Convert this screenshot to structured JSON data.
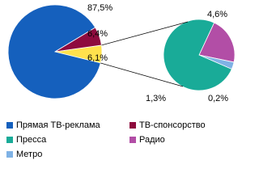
{
  "chart_data": {
    "type": "pie-of-pie",
    "main": {
      "categories": [
        "Прямая ТВ-реклама",
        "ТВ-спонсорство",
        null
      ],
      "values": [
        87.5,
        6.4,
        6.1
      ],
      "value_labels": [
        "87,5%",
        "6,4%",
        "6,1%"
      ],
      "colors": [
        "#1560bd",
        "#8e0b3e",
        "#ffe14d"
      ]
    },
    "secondary": {
      "categories": [
        "Пресса",
        "Радио",
        "Метро"
      ],
      "values": [
        4.6,
        1.3,
        0.2
      ],
      "value_labels": [
        "4,6%",
        "1,3%",
        "0,2%"
      ],
      "colors": [
        "#19ab98",
        "#b24ea6",
        "#7fb2e5"
      ]
    }
  }
}
